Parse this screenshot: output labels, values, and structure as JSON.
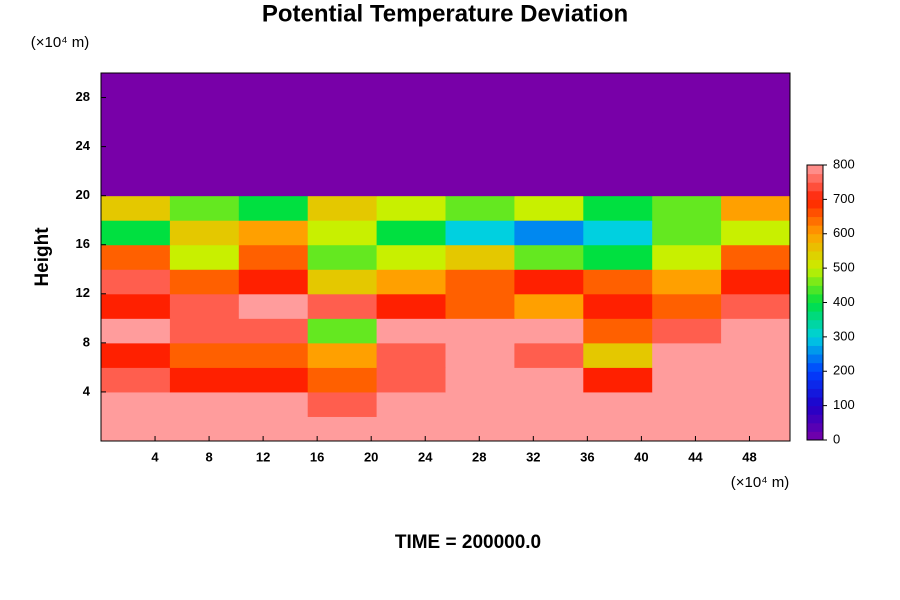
{
  "chart_data": {
    "type": "heatmap",
    "title": "Potential Temperature Deviation",
    "ylabel": "Height",
    "y_unit": "(×10⁴ m)",
    "x_unit": "(×10⁴ m)",
    "footer": "TIME = 200000.0",
    "xlim": [
      0,
      51
    ],
    "ylim": [
      0,
      30
    ],
    "xticks": [
      4,
      8,
      12,
      16,
      20,
      24,
      28,
      32,
      36,
      40,
      44,
      48
    ],
    "yticks": [
      4,
      8,
      12,
      16,
      20,
      24,
      28
    ],
    "clim": [
      0,
      800
    ],
    "cticks": [
      0,
      100,
      200,
      300,
      400,
      500,
      600,
      700,
      800
    ],
    "colors": [
      "#7800a8",
      "#2000c8",
      "#0040ff",
      "#00d0e0",
      "#00e040",
      "#c8f000",
      "#ffa000",
      "#ff2000",
      "#ff9c9c"
    ],
    "z": [
      [
        800,
        800,
        800,
        800,
        800,
        800,
        800,
        800,
        800,
        800
      ],
      [
        800,
        800,
        800,
        750,
        800,
        800,
        800,
        800,
        800,
        800
      ],
      [
        750,
        700,
        700,
        650,
        750,
        800,
        800,
        700,
        800,
        800
      ],
      [
        700,
        650,
        650,
        600,
        750,
        800,
        750,
        550,
        800,
        800
      ],
      [
        800,
        750,
        750,
        450,
        800,
        800,
        800,
        650,
        750,
        800
      ],
      [
        700,
        750,
        800,
        750,
        700,
        650,
        600,
        700,
        650,
        750
      ],
      [
        750,
        650,
        700,
        550,
        600,
        650,
        700,
        650,
        600,
        700
      ],
      [
        650,
        500,
        650,
        450,
        500,
        550,
        450,
        400,
        500,
        650
      ],
      [
        400,
        550,
        600,
        500,
        400,
        300,
        250,
        300,
        450,
        500
      ],
      [
        550,
        450,
        400,
        550,
        500,
        450,
        500,
        400,
        450,
        600
      ],
      [
        0,
        0,
        0,
        0,
        0,
        0,
        0,
        0,
        0,
        0
      ],
      [
        0,
        0,
        0,
        0,
        0,
        0,
        0,
        0,
        0,
        0
      ],
      [
        0,
        0,
        0,
        0,
        0,
        0,
        0,
        0,
        0,
        0
      ],
      [
        0,
        0,
        0,
        0,
        0,
        0,
        0,
        0,
        0,
        0
      ],
      [
        0,
        0,
        0,
        0,
        0,
        0,
        0,
        0,
        0,
        0
      ]
    ]
  }
}
